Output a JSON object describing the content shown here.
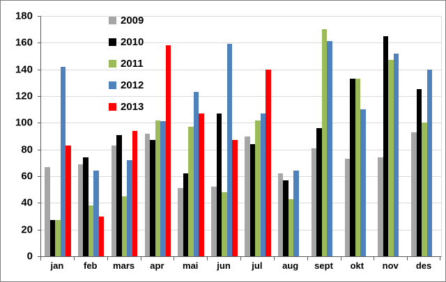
{
  "chart_data": {
    "type": "bar",
    "title": "",
    "xlabel": "",
    "ylabel": "",
    "categories": [
      "jan",
      "feb",
      "mars",
      "apr",
      "mai",
      "jun",
      "jul",
      "aug",
      "sept",
      "okt",
      "nov",
      "des"
    ],
    "yticks": [
      0,
      20,
      40,
      60,
      80,
      100,
      120,
      140,
      160,
      180
    ],
    "ylim": [
      0,
      180
    ],
    "grid": true,
    "legend_position": "inside-top-left",
    "series": [
      {
        "name": "2009",
        "color": "#A6A6A6",
        "values": [
          67,
          69,
          83,
          92,
          51,
          52,
          90,
          62,
          81,
          73,
          74,
          93
        ]
      },
      {
        "name": "2010",
        "color": "#000000",
        "values": [
          27,
          74,
          91,
          87,
          62,
          107,
          84,
          57,
          96,
          133,
          165,
          125
        ]
      },
      {
        "name": "2011",
        "color": "#9BBB59",
        "values": [
          27,
          38,
          45,
          102,
          97,
          48,
          102,
          43,
          170,
          133,
          147,
          100
        ]
      },
      {
        "name": "2012",
        "color": "#4F81BD",
        "values": [
          142,
          64,
          72,
          101,
          123,
          159,
          107,
          64,
          161,
          110,
          152,
          140
        ]
      },
      {
        "name": "2013",
        "color": "#FF0000",
        "values": [
          83,
          30,
          94,
          158,
          107,
          87,
          140,
          null,
          null,
          null,
          null,
          null
        ]
      }
    ]
  },
  "colors": {
    "background": "#ffffff",
    "frame_border": "#7f7f7f",
    "axis": "#595959",
    "grid": "#d9d9d9",
    "text": "#000000"
  }
}
